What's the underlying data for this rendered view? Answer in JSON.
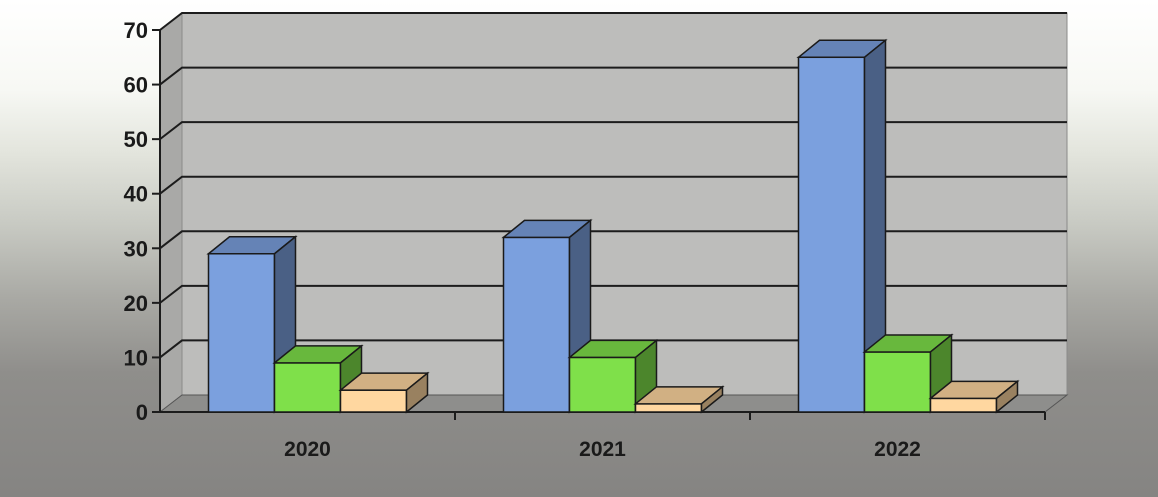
{
  "chart_data": {
    "type": "bar",
    "categories": [
      "2020",
      "2021",
      "2022"
    ],
    "series": [
      {
        "values": [
          29,
          32,
          65
        ],
        "color": "#7ba0de"
      },
      {
        "values": [
          9,
          10,
          11
        ],
        "color": "#7fe04a"
      },
      {
        "values": [
          4,
          1.5,
          2.5
        ],
        "color": "#ffd7a0"
      }
    ],
    "ylim": [
      0,
      70
    ],
    "yticks": [
      "0",
      "10",
      "20",
      "30",
      "40",
      "50",
      "60",
      "70"
    ],
    "grid": true,
    "legend": "none",
    "style": "3d-column"
  }
}
